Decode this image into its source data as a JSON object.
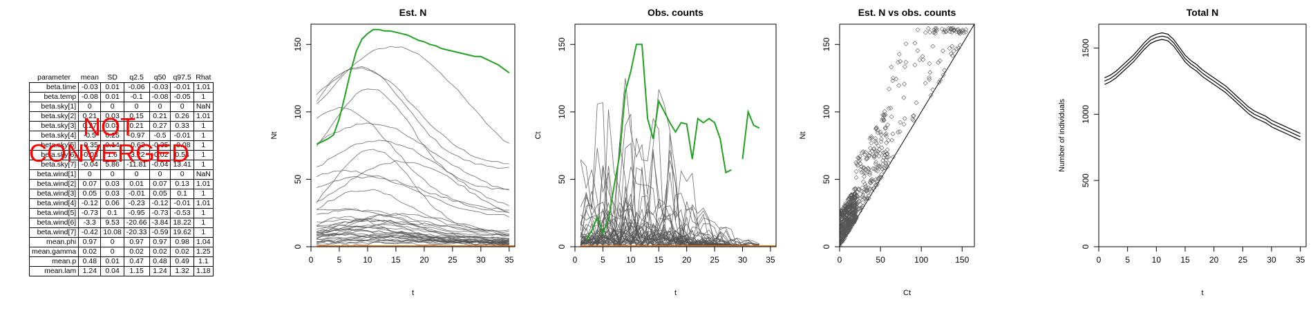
{
  "summary": {
    "headers": [
      "parameter",
      "mean",
      "SD",
      "q2.5",
      "q50",
      "q97.5",
      "Rhat"
    ],
    "rows": [
      [
        "beta.time",
        "-0.03",
        "0.01",
        "-0.06",
        "-0.03",
        "-0.01",
        "1.01"
      ],
      [
        "beta.temp",
        "-0.08",
        "0.01",
        "-0.1",
        "-0.08",
        "-0.05",
        "1"
      ],
      [
        "beta.sky[1]",
        "0",
        "0",
        "0",
        "0",
        "0",
        "NaN"
      ],
      [
        "beta.sky[2]",
        "0.21",
        "0.03",
        "0.15",
        "0.21",
        "0.26",
        "1.01"
      ],
      [
        "beta.sky[3]",
        "0.27",
        "0.03",
        "0.21",
        "0.27",
        "0.33",
        "1"
      ],
      [
        "beta.sky[4]",
        "-0.5",
        "0.25",
        "-0.97",
        "-0.5",
        "-0.01",
        "1"
      ],
      [
        "beta.sky[5]",
        "-0.35",
        "0.14",
        "-0.62",
        "-0.35",
        "-0.08",
        "1"
      ],
      [
        "beta.sky[6]",
        "-0.03",
        "1.6",
        "-3.22",
        "-0.02",
        "0.54",
        "1"
      ],
      [
        "beta.sky[7]",
        "-0.04",
        "5.86",
        "-11.81",
        "-0.04",
        "13.41",
        "1"
      ],
      [
        "beta.wind[1]",
        "0",
        "0",
        "0",
        "0",
        "0",
        "NaN"
      ],
      [
        "beta.wind[2]",
        "0.07",
        "0.03",
        "0.01",
        "0.07",
        "0.13",
        "1.01"
      ],
      [
        "beta.wind[3]",
        "0.05",
        "0.03",
        "-0.01",
        "0.05",
        "0.1",
        "1"
      ],
      [
        "beta.wind[4]",
        "-0.12",
        "0.06",
        "-0.23",
        "-0.12",
        "-0.01",
        "1.01"
      ],
      [
        "beta.wind[5]",
        "-0.73",
        "0.1",
        "-0.95",
        "-0.73",
        "-0.53",
        "1"
      ],
      [
        "beta.wind[6]",
        "-3.3",
        "9.53",
        "-20.66",
        "-3.84",
        "18.22",
        "1"
      ],
      [
        "beta.wind[7]",
        "-0.42",
        "10.08",
        "-20.33",
        "-0.59",
        "19.62",
        "1"
      ],
      [
        "mean.phi",
        "0.97",
        "0",
        "0.97",
        "0.97",
        "0.98",
        "1.04"
      ],
      [
        "mean.gamma",
        "0.02",
        "0",
        "0.02",
        "0.02",
        "0.02",
        "1.25"
      ],
      [
        "mean.p",
        "0.48",
        "0.01",
        "0.47",
        "0.48",
        "0.49",
        "1.1"
      ],
      [
        "mean.lam",
        "1.24",
        "0.04",
        "1.15",
        "1.24",
        "1.32",
        "1.18"
      ]
    ],
    "warning": [
      "NOT",
      "CONVERGED"
    ],
    "warning_color": "#ff0000"
  },
  "chart_data": [
    {
      "type": "line",
      "title": "Est. N",
      "xlabel": "t",
      "ylabel": "Nt",
      "xlim": [
        0,
        36
      ],
      "ylim": [
        0,
        165
      ],
      "xticks": [
        0,
        5,
        10,
        15,
        20,
        25,
        30,
        35
      ],
      "yticks": [
        0,
        50,
        100,
        150
      ],
      "highlight": {
        "color": "#22a022",
        "x": [
          1,
          2,
          3,
          4,
          5,
          6,
          7,
          8,
          9,
          10,
          11,
          12,
          13,
          14,
          15,
          16,
          17,
          18,
          19,
          20,
          21,
          22,
          23,
          24,
          25,
          26,
          27,
          28,
          29,
          30,
          31,
          32,
          33,
          34,
          35
        ],
        "y": [
          76,
          78,
          80,
          83,
          95,
          112,
          130,
          145,
          154,
          158,
          161,
          161,
          160,
          160,
          159,
          158,
          157,
          155,
          153,
          152,
          150,
          149,
          147,
          146,
          145,
          144,
          143,
          142,
          141,
          141,
          139,
          137,
          135,
          132,
          129
        ]
      },
      "series_color": "#505050",
      "baseline_color": "#e87722"
    },
    {
      "type": "line",
      "title": "Obs. counts",
      "xlabel": "t",
      "ylabel": "Ct",
      "xlim": [
        0,
        36
      ],
      "ylim": [
        0,
        165
      ],
      "xticks": [
        0,
        5,
        10,
        15,
        20,
        25,
        30,
        35
      ],
      "yticks": [
        0,
        50,
        100,
        150
      ],
      "highlight": {
        "color": "#22a022",
        "x": [
          2,
          3,
          4,
          5,
          6,
          7,
          8,
          9,
          10,
          11,
          12,
          13,
          14,
          15,
          16,
          17,
          18,
          19,
          20,
          21,
          22,
          23,
          24,
          25,
          26,
          27,
          28,
          29,
          30,
          31,
          32,
          33
        ],
        "y": [
          5,
          12,
          22,
          10,
          20,
          45,
          68,
          115,
          130,
          150,
          150,
          95,
          80,
          108,
          100,
          92,
          85,
          92,
          91,
          65,
          95,
          92,
          95,
          92,
          80,
          55,
          57,
          null,
          65,
          100,
          90,
          88
        ]
      },
      "series_color": "#505050",
      "baseline_color": "#e87722"
    },
    {
      "type": "scatter",
      "title": "Est. N vs obs. counts",
      "xlabel": "Ct",
      "ylabel": "Nt",
      "xlim": [
        0,
        165
      ],
      "ylim": [
        0,
        165
      ],
      "xticks": [
        0,
        50,
        100,
        150
      ],
      "yticks": [
        0,
        50,
        100,
        150
      ],
      "identity_line": true
    },
    {
      "type": "line",
      "title": "Total N",
      "xlabel": "t",
      "ylabel": "Number of individuals",
      "xlim": [
        0,
        36
      ],
      "ylim": [
        0,
        1680
      ],
      "xticks": [
        0,
        5,
        10,
        15,
        20,
        25,
        30,
        35
      ],
      "yticks": [
        0,
        500,
        1000,
        1500
      ],
      "x": [
        1,
        2,
        3,
        4,
        5,
        6,
        7,
        8,
        9,
        10,
        11,
        12,
        13,
        14,
        15,
        16,
        17,
        18,
        19,
        20,
        21,
        22,
        23,
        24,
        25,
        26,
        27,
        28,
        29,
        30,
        31,
        32,
        33,
        34,
        35
      ],
      "mean": [
        1250,
        1270,
        1300,
        1340,
        1380,
        1420,
        1470,
        1520,
        1560,
        1580,
        1590,
        1580,
        1540,
        1480,
        1420,
        1380,
        1350,
        1310,
        1280,
        1250,
        1220,
        1190,
        1150,
        1110,
        1070,
        1030,
        1000,
        980,
        960,
        930,
        910,
        890,
        870,
        850,
        830
      ],
      "band": 25
    }
  ]
}
